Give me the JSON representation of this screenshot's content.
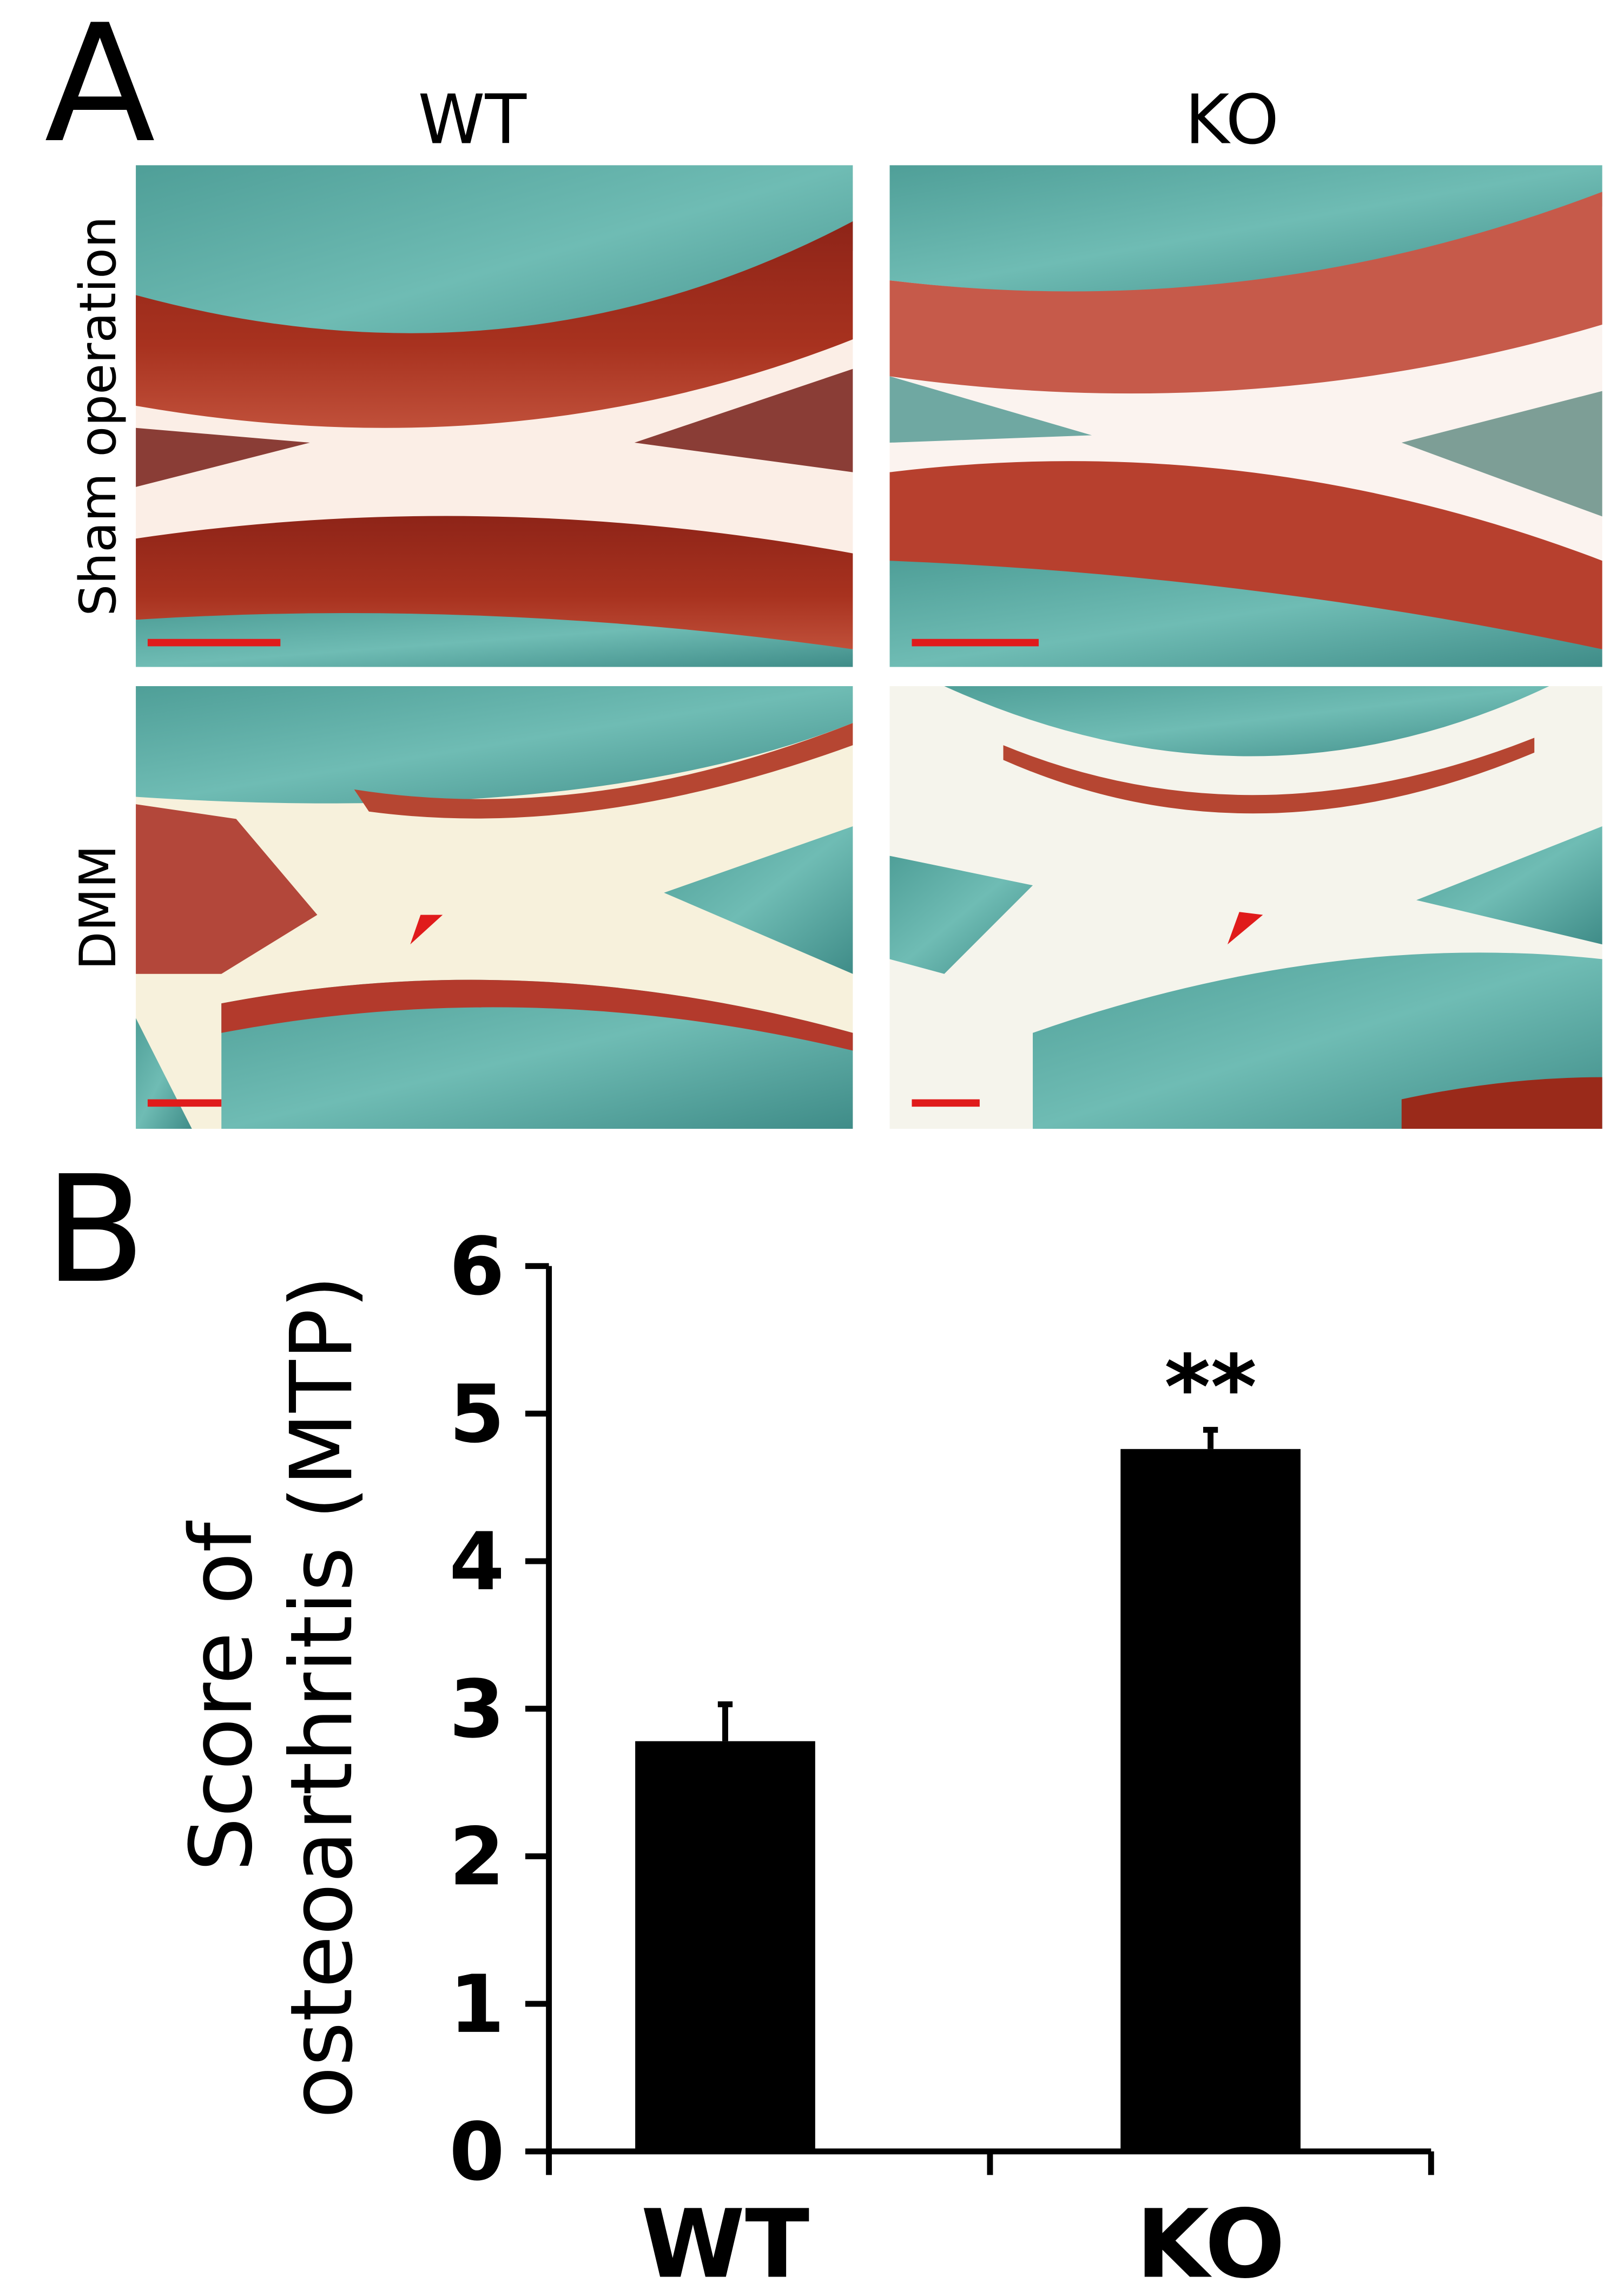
{
  "panel_a": {
    "label": "A",
    "columns": [
      "WT",
      "KO"
    ],
    "rows": [
      "Sham operation",
      "DMM"
    ]
  },
  "chart_data": {
    "type": "bar",
    "panel_label": "B",
    "ylabel": [
      "Score of",
      "osteoarthritis (MTP)"
    ],
    "categories": [
      "WT",
      "KO"
    ],
    "values": [
      2.78,
      4.76
    ],
    "errors": [
      0.25,
      0.13
    ],
    "annotations": [
      null,
      "**"
    ],
    "color": "#000000",
    "ylim": [
      0,
      6
    ],
    "yticks": [
      0,
      1,
      2,
      3,
      4,
      5,
      6
    ]
  }
}
